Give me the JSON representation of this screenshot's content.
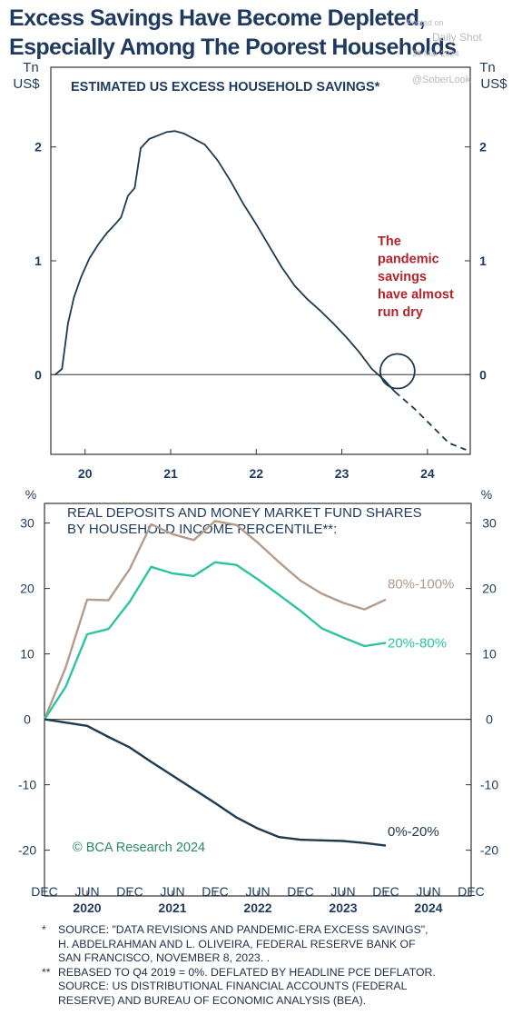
{
  "headline": {
    "line1": "Excess Savings Have Become Depleted,",
    "line2": "Especially Among The Poorest Households"
  },
  "watermark": {
    "line1": "Posted on",
    "line2": "Daily Shot",
    "line3": "28-Mar-2024",
    "line4": "@SoberLook"
  },
  "colors": {
    "navy": "#1e3a5f",
    "series_top": "#b39c8b",
    "series_mid": "#2ec4a0",
    "series_bottom": "#1d3a4f",
    "annotation": "#b3242a",
    "bca_green": "#2a8b5c"
  },
  "footnotes": [
    {
      "mark": "*",
      "lines": [
        "SOURCE: \"DATA REVISIONS AND PANDEMIC-ERA EXCESS SAVINGS\",",
        "H. ABDELRAHMAN AND L. OLIVEIRA, FEDERAL RESERVE BANK OF",
        "SAN FRANCISCO, NOVEMBER 8, 2023. ."
      ]
    },
    {
      "mark": "**",
      "lines": [
        "REBASED TO Q4 2019 = 0%. DEFLATED BY HEADLINE PCE DEFLATOR.",
        "SOURCE: US DISTRIBUTIONAL FINANCIAL ACCOUNTS (FEDERAL",
        "RESERVE) AND BUREAU OF ECONOMIC ANALYSIS (BEA)."
      ]
    }
  ],
  "chart_data": [
    {
      "type": "line",
      "title": "ESTIMATED US EXCESS HOUSEHOLD SAVINGS*",
      "unit_left": [
        "Tn",
        "US$"
      ],
      "unit_right": [
        "Tn",
        "US$"
      ],
      "ylim": [
        -0.7,
        2.7
      ],
      "xlim": [
        2019.6,
        2024.5
      ],
      "yticks": [
        0,
        1,
        2
      ],
      "ytick_labels": [
        "0",
        "1",
        "2"
      ],
      "xticks": [
        2020,
        2021,
        2022,
        2023,
        2024
      ],
      "xtick_labels": [
        "20",
        "21",
        "22",
        "23",
        "24"
      ],
      "grid": false,
      "zero_line": true,
      "series": [
        {
          "style": "solid",
          "x": [
            2019.65,
            2019.73,
            2019.8,
            2019.87,
            2019.95,
            2020.05,
            2020.15,
            2020.25,
            2020.35,
            2020.42,
            2020.5,
            2020.58,
            2020.65,
            2020.75,
            2020.85,
            2020.95,
            2021.05,
            2021.15,
            2021.25,
            2021.4,
            2021.55,
            2021.7,
            2021.85,
            2022.0,
            2022.15,
            2022.3,
            2022.45,
            2022.6,
            2022.75,
            2022.9,
            2023.05,
            2023.2,
            2023.35,
            2023.5,
            2023.62
          ],
          "y": [
            0.0,
            0.05,
            0.45,
            0.68,
            0.85,
            1.02,
            1.14,
            1.24,
            1.32,
            1.38,
            1.57,
            1.64,
            1.99,
            2.07,
            2.1,
            2.13,
            2.14,
            2.12,
            2.08,
            2.02,
            1.88,
            1.7,
            1.5,
            1.32,
            1.13,
            0.94,
            0.78,
            0.66,
            0.56,
            0.45,
            0.33,
            0.2,
            0.05,
            -0.05,
            -0.15
          ]
        },
        {
          "style": "dashed",
          "x": [
            2023.62,
            2023.85,
            2024.05,
            2024.25,
            2024.45
          ],
          "y": [
            -0.15,
            -0.3,
            -0.45,
            -0.6,
            -0.66
          ]
        }
      ],
      "annotations": [
        {
          "lines": [
            "The",
            "pandemic",
            "savings",
            "have almost",
            "run dry"
          ]
        }
      ],
      "highlight_circle": {
        "x": 2023.65,
        "y": 0.03
      }
    },
    {
      "type": "line",
      "title": [
        "REAL DEPOSITS AND MONEY MARKET FUND SHARES",
        "BY HOUSEHOLD INCOME PERCENTILE**:"
      ],
      "unit_left": "%",
      "unit_right": "%",
      "ylim": [
        -27,
        33
      ],
      "xlim": [
        2019.92,
        2024.92
      ],
      "yticks": [
        -20,
        -10,
        0,
        10,
        20,
        30
      ],
      "ytick_labels": [
        "-20",
        "-10",
        "0",
        "10",
        "20",
        "30"
      ],
      "xticks": [
        2019.92,
        2020.42,
        2020.92,
        2021.42,
        2021.92,
        2022.42,
        2022.92,
        2023.42,
        2023.92,
        2024.42,
        2024.92
      ],
      "xtick_labels": [
        "DEC",
        "JUN",
        "DEC",
        "JUN",
        "DEC",
        "JUN",
        "DEC",
        "JUN",
        "DEC",
        "JUN",
        "DEC"
      ],
      "year_labels": [
        {
          "x": 2020.42,
          "label": "2020"
        },
        {
          "x": 2021.42,
          "label": "2021"
        },
        {
          "x": 2022.42,
          "label": "2022"
        },
        {
          "x": 2023.42,
          "label": "2023"
        },
        {
          "x": 2024.42,
          "label": "2024"
        }
      ],
      "grid": false,
      "zero_line": true,
      "x": [
        2019.92,
        2020.17,
        2020.42,
        2020.67,
        2020.92,
        2021.17,
        2021.42,
        2021.67,
        2021.92,
        2022.17,
        2022.42,
        2022.67,
        2022.92,
        2023.17,
        2023.42,
        2023.67,
        2023.92
      ],
      "series": [
        {
          "name": "80%-100%",
          "color_key": "series_top",
          "values": [
            0,
            8,
            18.3,
            18.2,
            23,
            29.8,
            28.3,
            27.4,
            30.3,
            29.7,
            27,
            24,
            21.2,
            19.2,
            17.8,
            16.8,
            18.3
          ]
        },
        {
          "name": "20%-80%",
          "color_key": "series_mid",
          "values": [
            0,
            5,
            13,
            13.8,
            18,
            23.3,
            22.3,
            21.9,
            24,
            23.6,
            21.4,
            19,
            16.6,
            13.9,
            12.5,
            11.2,
            11.7
          ]
        },
        {
          "name": "0%-20%",
          "color_key": "series_bottom",
          "values": [
            0,
            -0.5,
            -1,
            -2.7,
            -4.3,
            -6.5,
            -8.6,
            -10.7,
            -12.8,
            -15,
            -16.7,
            -18,
            -18.4,
            -18.5,
            -18.6,
            -18.9,
            -19.3
          ]
        }
      ],
      "credit": "© BCA Research 2024"
    }
  ]
}
